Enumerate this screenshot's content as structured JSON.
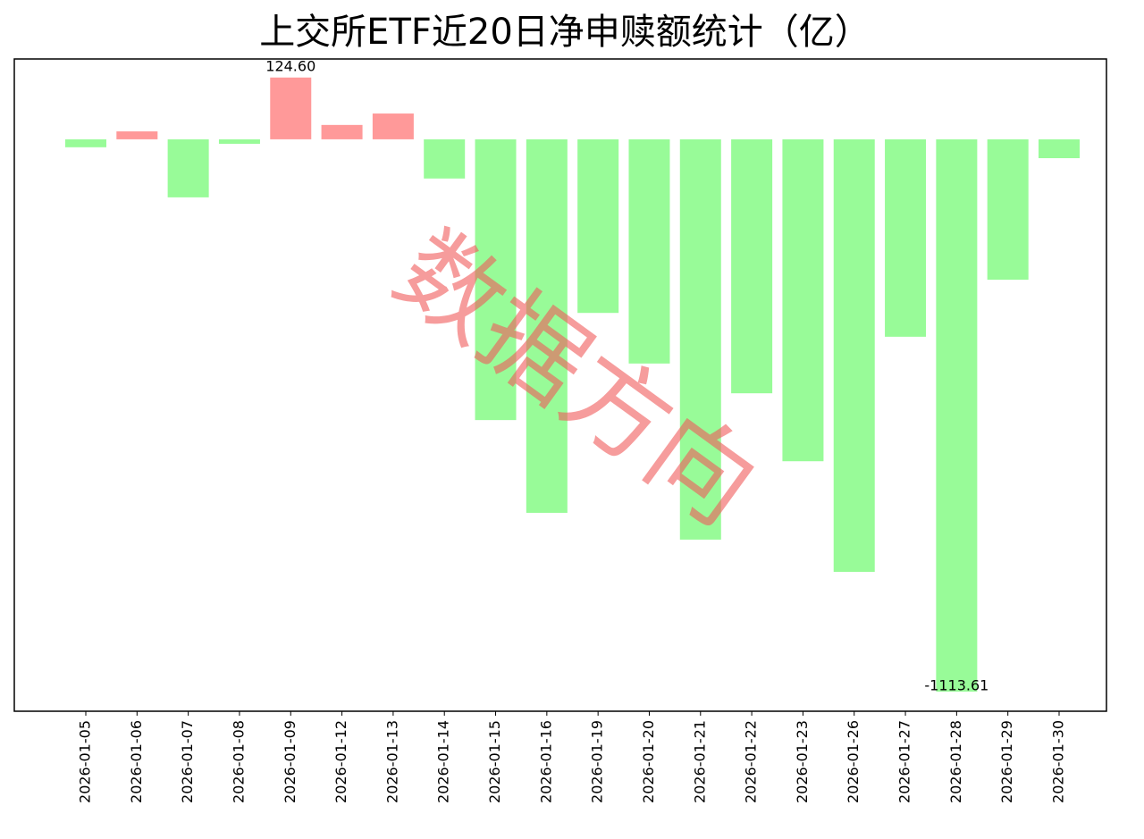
{
  "chart_data": {
    "type": "bar",
    "title": "上交所ETF近20日净申赎额统计（亿）",
    "watermark": "数据方向",
    "categories": [
      "2026-01-05",
      "2026-01-06",
      "2026-01-07",
      "2026-01-08",
      "2026-01-09",
      "2026-01-12",
      "2026-01-13",
      "2026-01-14",
      "2026-01-15",
      "2026-01-16",
      "2026-01-19",
      "2026-01-20",
      "2026-01-21",
      "2026-01-22",
      "2026-01-23",
      "2026-01-26",
      "2026-01-27",
      "2026-01-28",
      "2026-01-29",
      "2026-01-30"
    ],
    "values": [
      -16,
      16,
      -117,
      -9,
      124.6,
      29,
      52,
      -79,
      -566,
      -753,
      -350,
      -452,
      -807,
      -512,
      -649,
      -872,
      -398,
      -1113.61,
      -283,
      -38
    ],
    "value_labels": [
      null,
      null,
      null,
      null,
      "124.60",
      null,
      null,
      null,
      null,
      null,
      null,
      null,
      null,
      null,
      null,
      null,
      null,
      "-1113.61",
      null,
      null
    ],
    "positive_color": "#ff9999",
    "negative_color": "#98fb98",
    "ylim": [
      -1153,
      162
    ]
  }
}
